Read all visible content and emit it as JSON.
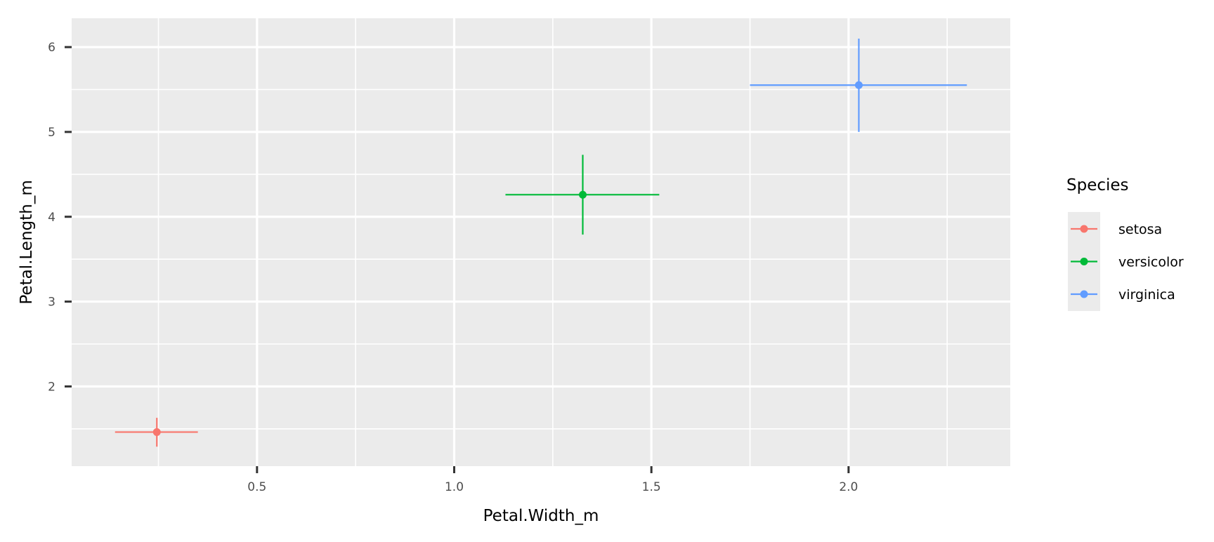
{
  "chart_data": {
    "type": "scatter",
    "title": "",
    "xlabel": "Petal.Width_m",
    "ylabel": "Petal.Length_m",
    "xlim": [
      0.03,
      2.41
    ],
    "ylim": [
      1.06,
      6.34
    ],
    "xticks": [
      0.5,
      1.0,
      1.5,
      2.0
    ],
    "xtick_labels": [
      "0.5",
      "1.0",
      "1.5",
      "2.0"
    ],
    "yticks": [
      2,
      3,
      4,
      5,
      6
    ],
    "ytick_labels": [
      "2",
      "3",
      "4",
      "5",
      "6"
    ],
    "x_minor": [
      0.25,
      0.75,
      1.25,
      1.75,
      2.25
    ],
    "y_minor": [
      1.5,
      2.5,
      3.5,
      4.5,
      5.5
    ],
    "grid": true,
    "panel_background": "#ebebeb",
    "legend": {
      "title": "Species",
      "position": "right"
    },
    "series": [
      {
        "name": "setosa",
        "color": "#f8766d",
        "x": 0.246,
        "y": 1.462,
        "x_err": [
          0.14,
          0.35
        ],
        "y_err": [
          1.29,
          1.63
        ]
      },
      {
        "name": "versicolor",
        "color": "#00ba38",
        "x": 1.326,
        "y": 4.26,
        "x_err": [
          1.13,
          1.52
        ],
        "y_err": [
          3.79,
          4.73
        ]
      },
      {
        "name": "virginica",
        "color": "#619cff",
        "x": 2.026,
        "y": 5.552,
        "x_err": [
          1.75,
          2.3
        ],
        "y_err": [
          5.0,
          6.1
        ]
      }
    ]
  }
}
